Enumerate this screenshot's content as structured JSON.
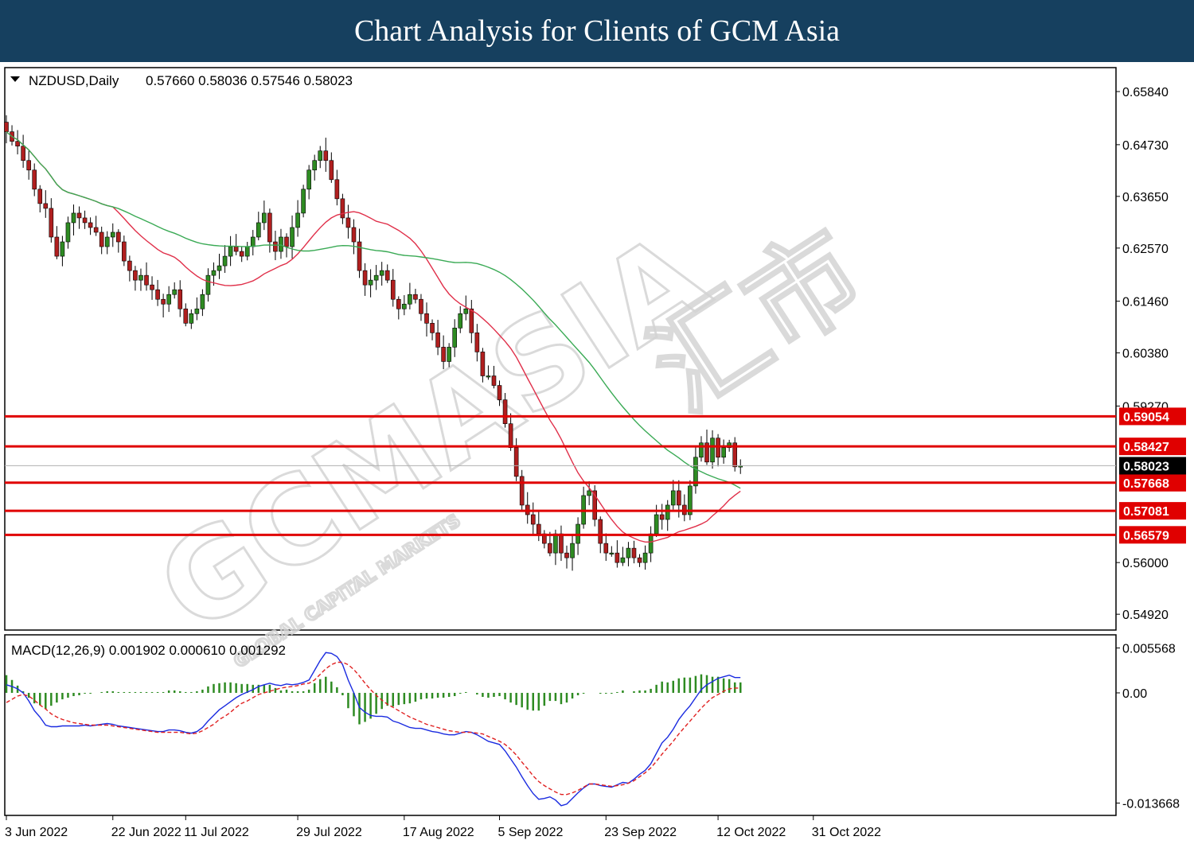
{
  "banner": {
    "title": "Chart Analysis for Clients of GCM Asia"
  },
  "watermark": {
    "brand": "GCMASIA",
    "chinese": "汇市",
    "sub": "GLOBAL CAPITAL MARKETS"
  },
  "colors": {
    "up": "#2e8b22",
    "down": "#b01f1f",
    "ma_short": "#e0304a",
    "ma_long": "#3aaa55",
    "level": "#e00000",
    "macd_line": "#1a2be0",
    "signal_line": "#e02020",
    "histogram": "#2e8b22"
  },
  "chart_data": {
    "type": "candlestick",
    "symbol_header": "NZDUSD,Daily",
    "ohlc_header": "0.57660 0.58036 0.57546 0.58023",
    "price_axis": {
      "ticks": [
        "0.65840",
        "0.64730",
        "0.63650",
        "0.62570",
        "0.61460",
        "0.60380",
        "0.59270",
        "0.58023",
        "0.56000",
        "0.54920"
      ],
      "range": [
        0.5459,
        0.6634
      ]
    },
    "current_price": "0.58023",
    "levels": [
      "0.59054",
      "0.58427",
      "0.57668",
      "0.57081",
      "0.56579"
    ],
    "x_axis": {
      "labels": [
        "3 Jun 2022",
        "22 Jun 2022",
        "11 Jul 2022",
        "29 Jul 2022",
        "17 Aug 2022",
        "5 Sep 2022",
        "23 Sep 2022",
        "12 Oct 2022",
        "31 Oct 2022"
      ],
      "label_bar_index": [
        0,
        19,
        32,
        52,
        71,
        88,
        107,
        127,
        144
      ]
    },
    "closes": [
      0.65,
      0.648,
      0.647,
      0.644,
      0.642,
      0.638,
      0.635,
      0.634,
      0.628,
      0.624,
      0.627,
      0.631,
      0.633,
      0.632,
      0.631,
      0.63,
      0.629,
      0.626,
      0.628,
      0.629,
      0.627,
      0.623,
      0.621,
      0.619,
      0.62,
      0.618,
      0.617,
      0.615,
      0.614,
      0.616,
      0.617,
      0.613,
      0.61,
      0.612,
      0.613,
      0.616,
      0.62,
      0.621,
      0.622,
      0.624,
      0.626,
      0.625,
      0.624,
      0.626,
      0.628,
      0.631,
      0.633,
      0.627,
      0.625,
      0.628,
      0.626,
      0.63,
      0.633,
      0.638,
      0.642,
      0.644,
      0.646,
      0.644,
      0.64,
      0.636,
      0.632,
      0.63,
      0.627,
      0.621,
      0.618,
      0.619,
      0.62,
      0.621,
      0.619,
      0.615,
      0.613,
      0.614,
      0.616,
      0.615,
      0.612,
      0.61,
      0.608,
      0.605,
      0.602,
      0.605,
      0.609,
      0.612,
      0.613,
      0.608,
      0.604,
      0.599,
      0.599,
      0.597,
      0.594,
      0.589,
      0.584,
      0.578,
      0.572,
      0.57,
      0.568,
      0.566,
      0.564,
      0.562,
      0.566,
      0.562,
      0.561,
      0.564,
      0.568,
      0.574,
      0.575,
      0.569,
      0.564,
      0.562,
      0.562,
      0.56,
      0.561,
      0.563,
      0.561,
      0.56,
      0.562,
      0.566,
      0.57,
      0.569,
      0.572,
      0.575,
      0.572,
      0.57,
      0.576,
      0.582,
      0.585,
      0.581,
      0.586,
      0.582,
      0.584,
      0.585,
      0.58,
      0.5802
    ],
    "ma_short_note": "",
    "macd": {
      "header": "MACD(12,26,9) 0.001902 0.000610 0.001292",
      "axis_ticks": [
        "0.005568",
        "0.00",
        "-0.013668"
      ],
      "range": [
        -0.0152,
        0.0072
      ],
      "macd_line": [
        0.001,
        0.0008,
        0.0005,
        0.0,
        -0.001,
        -0.0022,
        -0.003,
        -0.004,
        -0.0042,
        -0.0042,
        -0.0041,
        -0.0041,
        -0.0041,
        -0.0041,
        -0.004,
        -0.0041,
        -0.004,
        -0.0039,
        -0.0038,
        -0.0039,
        -0.0041,
        -0.0042,
        -0.0043,
        -0.0044,
        -0.0045,
        -0.0046,
        -0.0047,
        -0.0048,
        -0.0048,
        -0.0046,
        -0.0046,
        -0.0047,
        -0.0049,
        -0.005,
        -0.0048,
        -0.0043,
        -0.0035,
        -0.0028,
        -0.0021,
        -0.0016,
        -0.0011,
        -0.0006,
        -0.0002,
        0.0001,
        0.0004,
        0.0008,
        0.001,
        0.0012,
        0.001,
        0.0009,
        0.0011,
        0.001,
        0.0011,
        0.0013,
        0.0016,
        0.0028,
        0.004,
        0.005,
        0.0049,
        0.0045,
        0.0035,
        0.0016,
        0.0,
        -0.0018,
        -0.0024,
        -0.0028,
        -0.0029,
        -0.0029,
        -0.003,
        -0.0035,
        -0.0037,
        -0.004,
        -0.0043,
        -0.0044,
        -0.0044,
        -0.0046,
        -0.0048,
        -0.0049,
        -0.0051,
        -0.0052,
        -0.0052,
        -0.005,
        -0.0048,
        -0.0049,
        -0.0052,
        -0.0056,
        -0.006,
        -0.0062,
        -0.0064,
        -0.0072,
        -0.0082,
        -0.0092,
        -0.0104,
        -0.0115,
        -0.0125,
        -0.0132,
        -0.0131,
        -0.0129,
        -0.0133,
        -0.014,
        -0.0138,
        -0.0131,
        -0.0124,
        -0.0118,
        -0.0113,
        -0.0113,
        -0.0115,
        -0.0116,
        -0.0117,
        -0.0114,
        -0.0111,
        -0.0112,
        -0.0107,
        -0.0101,
        -0.0096,
        -0.0088,
        -0.0075,
        -0.0062,
        -0.0055,
        -0.0045,
        -0.0033,
        -0.0024,
        -0.0016,
        -0.0006,
        0.0004,
        0.001,
        0.0014,
        0.0018,
        0.002,
        0.0022,
        0.0019,
        0.0019
      ],
      "signal_line": [
        -0.0012,
        -0.0008,
        -0.0004,
        -0.0002,
        -0.0004,
        -0.0009,
        -0.0015,
        -0.002,
        -0.0026,
        -0.003,
        -0.0033,
        -0.0035,
        -0.0037,
        -0.0038,
        -0.0039,
        -0.004,
        -0.004,
        -0.004,
        -0.004,
        -0.0041,
        -0.0042,
        -0.0043,
        -0.0044,
        -0.0045,
        -0.0046,
        -0.0047,
        -0.0048,
        -0.0049,
        -0.0049,
        -0.0049,
        -0.0049,
        -0.0049,
        -0.005,
        -0.0051,
        -0.005,
        -0.0047,
        -0.0043,
        -0.0039,
        -0.0033,
        -0.0029,
        -0.0024,
        -0.0018,
        -0.0013,
        -0.001,
        -0.0006,
        -0.0002,
        0.0,
        0.0002,
        0.0004,
        0.0006,
        0.0007,
        0.0008,
        0.0009,
        0.0011,
        0.0012,
        0.0016,
        0.0023,
        0.003,
        0.0035,
        0.0038,
        0.0038,
        0.0035,
        0.0029,
        0.0021,
        0.0012,
        0.0004,
        -0.0003,
        -0.0009,
        -0.0014,
        -0.0018,
        -0.0022,
        -0.0026,
        -0.003,
        -0.0033,
        -0.0036,
        -0.0039,
        -0.0041,
        -0.0043,
        -0.0045,
        -0.0047,
        -0.0048,
        -0.0049,
        -0.0049,
        -0.0049,
        -0.005,
        -0.0051,
        -0.0054,
        -0.0057,
        -0.006,
        -0.0064,
        -0.007,
        -0.0077,
        -0.0086,
        -0.0094,
        -0.0103,
        -0.011,
        -0.0115,
        -0.0119,
        -0.0123,
        -0.0126,
        -0.0126,
        -0.0124,
        -0.0121,
        -0.0117,
        -0.0113,
        -0.0113,
        -0.0114,
        -0.0115,
        -0.0116,
        -0.0115,
        -0.0114,
        -0.0112,
        -0.0109,
        -0.0104,
        -0.0099,
        -0.0093,
        -0.0085,
        -0.0076,
        -0.0068,
        -0.006,
        -0.0051,
        -0.0043,
        -0.0035,
        -0.0027,
        -0.0019,
        -0.0012,
        -0.0006,
        -0.0002,
        0.0002,
        0.0005,
        0.0006,
        0.0006
      ]
    }
  }
}
